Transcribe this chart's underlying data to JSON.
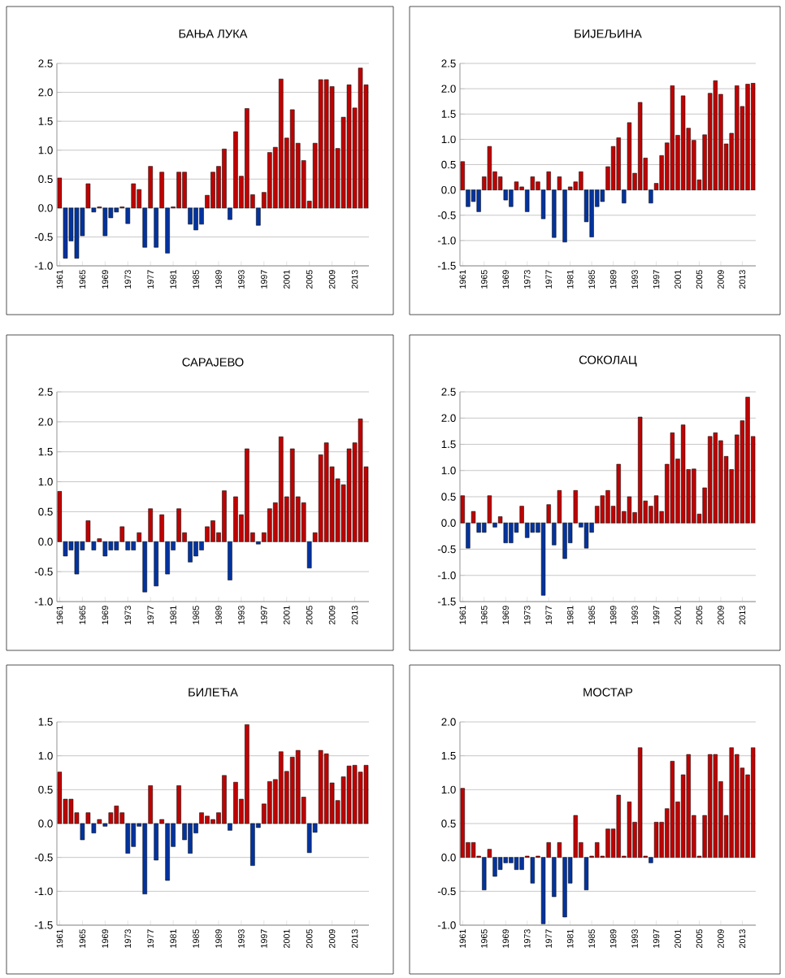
{
  "chart_data": [
    {
      "type": "bar",
      "title": "БАЊА ЛУКА",
      "grid": "y",
      "categories": [
        "1961",
        null,
        null,
        null,
        "1965",
        null,
        null,
        null,
        "1969",
        null,
        null,
        null,
        "1973",
        null,
        null,
        null,
        "1977",
        null,
        null,
        null,
        "1981",
        null,
        null,
        null,
        "1985",
        null,
        null,
        null,
        "1989",
        null,
        null,
        null,
        "1993",
        null,
        null,
        null,
        "1997",
        null,
        null,
        null,
        "2001",
        null,
        null,
        null,
        "2005",
        null,
        null,
        null,
        "2009",
        null,
        null,
        null,
        "2013",
        null,
        null
      ],
      "values": [
        0.52,
        -0.87,
        -0.57,
        -0.87,
        -0.48,
        0.42,
        -0.07,
        0.02,
        -0.48,
        -0.17,
        -0.07,
        0.02,
        -0.27,
        0.42,
        0.32,
        -0.68,
        0.72,
        -0.68,
        0.62,
        -0.78,
        0.02,
        0.62,
        0.62,
        -0.28,
        -0.38,
        -0.28,
        0.22,
        0.62,
        0.72,
        1.02,
        -0.2,
        1.32,
        0.55,
        1.72,
        0.23,
        -0.3,
        0.27,
        0.96,
        1.05,
        2.23,
        1.21,
        1.7,
        1.12,
        0.82,
        0.12,
        1.12,
        2.22,
        2.22,
        2.1,
        1.03,
        1.57,
        2.13,
        1.73,
        2.42,
        2.13
      ],
      "colors": [
        "#c00000",
        "#0033a0",
        "#0033a0",
        "#0033a0",
        "#0033a0",
        "#c00000",
        "#0033a0",
        "#c00000",
        "#0033a0",
        "#0033a0",
        "#0033a0",
        "#c00000",
        "#0033a0",
        "#c00000",
        "#c00000",
        "#0033a0",
        "#c00000",
        "#0033a0",
        "#c00000",
        "#0033a0",
        "#c00000",
        "#c00000",
        "#c00000",
        "#0033a0",
        "#0033a0",
        "#0033a0",
        "#c00000",
        "#c00000",
        "#c00000",
        "#c00000",
        "#0033a0",
        "#c00000",
        "#c00000",
        "#c00000",
        "#c00000",
        "#0033a0",
        "#c00000",
        "#c00000",
        "#c00000",
        "#c00000",
        "#c00000",
        "#c00000",
        "#c00000",
        "#c00000",
        "#c00000",
        "#c00000",
        "#c00000",
        "#c00000",
        "#c00000",
        "#c00000",
        "#c00000",
        "#c00000",
        "#c00000",
        "#c00000",
        "#c00000"
      ],
      "ylim": [
        -1,
        2.5
      ],
      "yticks": [
        {
          "value": -1,
          "label": "-1.0"
        },
        {
          "value": -0.5,
          "label": "-0.5"
        },
        {
          "value": 0,
          "label": "0.0"
        },
        {
          "value": 0.5,
          "label": "0.5"
        },
        {
          "value": 1,
          "label": "1.0"
        },
        {
          "value": 1.5,
          "label": "1.5"
        },
        {
          "value": 2,
          "label": "2.0"
        },
        {
          "value": 2.5,
          "label": "2.5"
        }
      ]
    },
    {
      "type": "bar",
      "title": "БИЈЕЉИНА",
      "grid": "y",
      "categories": [
        "1961",
        null,
        null,
        null,
        "1965",
        null,
        null,
        null,
        "1969",
        null,
        null,
        null,
        "1973",
        null,
        null,
        null,
        "1977",
        null,
        null,
        null,
        "1981",
        null,
        null,
        null,
        "1985",
        null,
        null,
        null,
        "1989",
        null,
        null,
        null,
        "1993",
        null,
        null,
        null,
        "1997",
        null,
        null,
        null,
        "2001",
        null,
        null,
        null,
        "2005",
        null,
        null,
        null,
        "2009",
        null,
        null,
        null,
        "2013",
        null,
        null
      ],
      "values": [
        0.56,
        -0.33,
        -0.23,
        -0.43,
        0.26,
        0.86,
        0.36,
        0.26,
        -0.2,
        -0.33,
        0.16,
        0.06,
        -0.43,
        0.26,
        0.16,
        -0.57,
        0.36,
        -0.94,
        0.26,
        -1.03,
        0.06,
        0.16,
        0.36,
        -0.63,
        -0.93,
        -0.33,
        -0.23,
        0.46,
        0.86,
        1.03,
        -0.26,
        1.33,
        0.33,
        1.73,
        0.63,
        -0.26,
        0.13,
        0.68,
        0.93,
        2.06,
        1.08,
        1.86,
        1.22,
        0.98,
        0.2,
        1.09,
        1.91,
        2.16,
        1.89,
        0.91,
        1.12,
        2.06,
        1.65,
        2.09,
        2.11
      ],
      "colors": [
        "#c00000",
        "#0033a0",
        "#0033a0",
        "#0033a0",
        "#c00000",
        "#c00000",
        "#c00000",
        "#c00000",
        "#0033a0",
        "#0033a0",
        "#c00000",
        "#c00000",
        "#0033a0",
        "#c00000",
        "#c00000",
        "#0033a0",
        "#c00000",
        "#0033a0",
        "#c00000",
        "#0033a0",
        "#c00000",
        "#c00000",
        "#c00000",
        "#0033a0",
        "#0033a0",
        "#0033a0",
        "#0033a0",
        "#c00000",
        "#c00000",
        "#c00000",
        "#0033a0",
        "#c00000",
        "#c00000",
        "#c00000",
        "#c00000",
        "#0033a0",
        "#c00000",
        "#c00000",
        "#c00000",
        "#c00000",
        "#c00000",
        "#c00000",
        "#c00000",
        "#c00000",
        "#c00000",
        "#c00000",
        "#c00000",
        "#c00000",
        "#c00000",
        "#c00000",
        "#c00000",
        "#c00000",
        "#c00000",
        "#c00000",
        "#c00000"
      ],
      "ylim": [
        -1.5,
        2.5
      ],
      "yticks": [
        {
          "value": -1.5,
          "label": "-1.5"
        },
        {
          "value": -1,
          "label": "-1.0"
        },
        {
          "value": -0.5,
          "label": "-0.5"
        },
        {
          "value": 0,
          "label": "0.0"
        },
        {
          "value": 0.5,
          "label": "0.5"
        },
        {
          "value": 1,
          "label": "1.0"
        },
        {
          "value": 1.5,
          "label": "1.5"
        },
        {
          "value": 2,
          "label": "2.0"
        },
        {
          "value": 2.5,
          "label": "2.5"
        }
      ]
    },
    {
      "type": "bar",
      "title": "САРАЈЕВО",
      "grid": "y",
      "categories": [
        "1961",
        null,
        null,
        null,
        "1965",
        null,
        null,
        null,
        "1969",
        null,
        null,
        null,
        "1973",
        null,
        null,
        null,
        "1977",
        null,
        null,
        null,
        "1981",
        null,
        null,
        null,
        "1985",
        null,
        null,
        null,
        "1989",
        null,
        null,
        null,
        "1993",
        null,
        null,
        null,
        "1997",
        null,
        null,
        null,
        "2001",
        null,
        null,
        null,
        "2005",
        null,
        null,
        null,
        "2009",
        null,
        null,
        null,
        "2013",
        null,
        null
      ],
      "values": [
        0.84,
        -0.24,
        -0.14,
        -0.54,
        -0.14,
        0.35,
        -0.14,
        0.05,
        -0.24,
        -0.14,
        -0.14,
        0.25,
        -0.14,
        -0.14,
        0.15,
        -0.84,
        0.55,
        -0.74,
        0.45,
        -0.54,
        -0.14,
        0.55,
        0.15,
        -0.34,
        -0.24,
        -0.14,
        0.25,
        0.35,
        0.15,
        0.85,
        -0.64,
        0.75,
        0.45,
        1.55,
        0.15,
        -0.04,
        0.15,
        0.55,
        0.65,
        1.75,
        0.75,
        1.55,
        0.75,
        0.65,
        -0.44,
        0.15,
        1.45,
        1.65,
        1.25,
        1.05,
        0.95,
        1.55,
        1.65,
        2.05,
        1.25
      ],
      "colors": [
        "#c00000",
        "#0033a0",
        "#0033a0",
        "#0033a0",
        "#0033a0",
        "#c00000",
        "#0033a0",
        "#c00000",
        "#0033a0",
        "#0033a0",
        "#0033a0",
        "#c00000",
        "#0033a0",
        "#0033a0",
        "#c00000",
        "#0033a0",
        "#c00000",
        "#0033a0",
        "#c00000",
        "#0033a0",
        "#0033a0",
        "#c00000",
        "#c00000",
        "#0033a0",
        "#0033a0",
        "#0033a0",
        "#c00000",
        "#c00000",
        "#c00000",
        "#c00000",
        "#0033a0",
        "#c00000",
        "#c00000",
        "#c00000",
        "#c00000",
        "#0033a0",
        "#c00000",
        "#c00000",
        "#c00000",
        "#c00000",
        "#c00000",
        "#c00000",
        "#c00000",
        "#c00000",
        "#0033a0",
        "#c00000",
        "#c00000",
        "#c00000",
        "#c00000",
        "#c00000",
        "#c00000",
        "#c00000",
        "#c00000",
        "#c00000",
        "#c00000"
      ],
      "ylim": [
        -1,
        2.5
      ],
      "yticks": [
        {
          "value": -1,
          "label": "-1.0"
        },
        {
          "value": -0.5,
          "label": "-0.5"
        },
        {
          "value": 0,
          "label": "0.0"
        },
        {
          "value": 0.5,
          "label": "0.5"
        },
        {
          "value": 1,
          "label": "1.0"
        },
        {
          "value": 1.5,
          "label": "1.5"
        },
        {
          "value": 2,
          "label": "2.0"
        },
        {
          "value": 2.5,
          "label": "2.5"
        }
      ]
    },
    {
      "type": "bar",
      "title": "СОКОЛАЦ",
      "grid": "y",
      "categories": [
        "1961",
        null,
        null,
        null,
        "1965",
        null,
        null,
        null,
        "1969",
        null,
        null,
        null,
        "1973",
        null,
        null,
        null,
        "1977",
        null,
        null,
        null,
        "1981",
        null,
        null,
        null,
        "1985",
        null,
        null,
        null,
        "1989",
        null,
        null,
        null,
        "1993",
        null,
        null,
        null,
        "1997",
        null,
        null,
        null,
        "2001",
        null,
        null,
        null,
        "2005",
        null,
        null,
        null,
        "2009",
        null,
        null,
        null,
        "2013",
        null,
        null
      ],
      "values": [
        0.52,
        -0.48,
        0.22,
        -0.18,
        -0.18,
        0.52,
        -0.08,
        0.12,
        -0.38,
        -0.38,
        -0.18,
        0.32,
        -0.28,
        -0.18,
        -0.18,
        -1.38,
        0.35,
        -0.42,
        0.62,
        -0.68,
        -0.38,
        0.62,
        -0.08,
        -0.48,
        -0.18,
        0.32,
        0.52,
        0.62,
        0.32,
        1.12,
        0.22,
        0.5,
        0.2,
        2.02,
        0.42,
        0.32,
        0.52,
        0.22,
        1.12,
        1.72,
        1.22,
        1.87,
        1.02,
        1.03,
        0.17,
        0.67,
        1.65,
        1.72,
        1.57,
        1.27,
        1.02,
        1.68,
        1.95,
        2.4,
        1.65
      ],
      "colors": [
        "#c00000",
        "#0033a0",
        "#c00000",
        "#0033a0",
        "#0033a0",
        "#c00000",
        "#0033a0",
        "#c00000",
        "#0033a0",
        "#0033a0",
        "#0033a0",
        "#c00000",
        "#0033a0",
        "#0033a0",
        "#0033a0",
        "#0033a0",
        "#c00000",
        "#0033a0",
        "#c00000",
        "#0033a0",
        "#0033a0",
        "#c00000",
        "#0033a0",
        "#0033a0",
        "#0033a0",
        "#c00000",
        "#c00000",
        "#c00000",
        "#c00000",
        "#c00000",
        "#c00000",
        "#c00000",
        "#c00000",
        "#c00000",
        "#c00000",
        "#c00000",
        "#c00000",
        "#c00000",
        "#c00000",
        "#c00000",
        "#c00000",
        "#c00000",
        "#c00000",
        "#c00000",
        "#c00000",
        "#c00000",
        "#c00000",
        "#c00000",
        "#c00000",
        "#c00000",
        "#c00000",
        "#c00000",
        "#c00000",
        "#c00000",
        "#c00000"
      ],
      "ylim": [
        -1.5,
        2.5
      ],
      "yticks": [
        {
          "value": -1.5,
          "label": "-1.5"
        },
        {
          "value": -1,
          "label": "-1.0"
        },
        {
          "value": -0.5,
          "label": "-0.5"
        },
        {
          "value": 0,
          "label": "0.0"
        },
        {
          "value": 0.5,
          "label": "0.5"
        },
        {
          "value": 1,
          "label": "1.0"
        },
        {
          "value": 1.5,
          "label": "1.5"
        },
        {
          "value": 2,
          "label": "2.0"
        },
        {
          "value": 2.5,
          "label": "2.5"
        }
      ]
    },
    {
      "type": "bar",
      "title": "БИЛЕЋА",
      "grid": "y",
      "categories": [
        "1961",
        null,
        null,
        null,
        "1965",
        null,
        null,
        null,
        "1969",
        null,
        null,
        null,
        "1973",
        null,
        null,
        null,
        "1977",
        null,
        null,
        null,
        "1981",
        null,
        null,
        null,
        "1985",
        null,
        null,
        null,
        "1989",
        null,
        null,
        null,
        "1993",
        null,
        null,
        null,
        "1997",
        null,
        null,
        null,
        "2001",
        null,
        null,
        null,
        "2005",
        null,
        null,
        null,
        "2009",
        null,
        null,
        null,
        "2013",
        null,
        null
      ],
      "values": [
        0.76,
        0.36,
        0.36,
        0.16,
        -0.24,
        0.16,
        -0.14,
        0.06,
        -0.04,
        0.16,
        0.26,
        0.16,
        -0.44,
        -0.34,
        -0.04,
        -1.04,
        0.56,
        -0.54,
        0.06,
        -0.84,
        -0.34,
        0.56,
        -0.24,
        -0.44,
        -0.14,
        0.16,
        0.11,
        0.06,
        0.16,
        0.71,
        -0.1,
        0.61,
        0.36,
        1.46,
        -0.62,
        -0.06,
        0.29,
        0.62,
        0.65,
        1.06,
        0.77,
        0.98,
        1.08,
        0.39,
        -0.43,
        -0.13,
        1.08,
        1.03,
        0.6,
        0.34,
        0.69,
        0.85,
        0.86,
        0.76,
        0.86
      ],
      "colors": [
        "#c00000",
        "#c00000",
        "#c00000",
        "#c00000",
        "#0033a0",
        "#c00000",
        "#0033a0",
        "#c00000",
        "#0033a0",
        "#c00000",
        "#c00000",
        "#c00000",
        "#0033a0",
        "#0033a0",
        "#0033a0",
        "#0033a0",
        "#c00000",
        "#0033a0",
        "#c00000",
        "#0033a0",
        "#0033a0",
        "#c00000",
        "#0033a0",
        "#0033a0",
        "#0033a0",
        "#c00000",
        "#c00000",
        "#c00000",
        "#c00000",
        "#c00000",
        "#0033a0",
        "#c00000",
        "#c00000",
        "#c00000",
        "#0033a0",
        "#0033a0",
        "#c00000",
        "#c00000",
        "#c00000",
        "#c00000",
        "#c00000",
        "#c00000",
        "#c00000",
        "#c00000",
        "#0033a0",
        "#0033a0",
        "#c00000",
        "#c00000",
        "#c00000",
        "#c00000",
        "#c00000",
        "#c00000",
        "#c00000",
        "#c00000",
        "#c00000"
      ],
      "ylim": [
        -1.5,
        1.5
      ],
      "yticks": [
        {
          "value": -1.5,
          "label": "-1.5"
        },
        {
          "value": -1,
          "label": "-1.0"
        },
        {
          "value": -0.5,
          "label": "-0.5"
        },
        {
          "value": 0,
          "label": "0.0"
        },
        {
          "value": 0.5,
          "label": "0.5"
        },
        {
          "value": 1,
          "label": "1.0"
        },
        {
          "value": 1.5,
          "label": "1.5"
        }
      ]
    },
    {
      "type": "bar",
      "title": "МОСТАР",
      "grid": "y",
      "categories": [
        "1961",
        null,
        null,
        null,
        "1965",
        null,
        null,
        null,
        "1969",
        null,
        null,
        null,
        "1973",
        null,
        null,
        null,
        "1977",
        null,
        null,
        null,
        "1981",
        null,
        null,
        null,
        "1985",
        null,
        null,
        null,
        "1989",
        null,
        null,
        null,
        "1993",
        null,
        null,
        null,
        "1997",
        null,
        null,
        null,
        "2001",
        null,
        null,
        null,
        "2005",
        null,
        null,
        null,
        "2009",
        null,
        null,
        null,
        "2013",
        null,
        null
      ],
      "values": [
        1.02,
        0.22,
        0.22,
        0.02,
        -0.48,
        0.12,
        -0.28,
        -0.18,
        -0.08,
        -0.08,
        -0.18,
        -0.18,
        0.02,
        -0.38,
        0.02,
        -0.98,
        0.22,
        -0.58,
        0.22,
        -0.88,
        -0.38,
        0.62,
        0.22,
        -0.48,
        0.02,
        0.22,
        0.02,
        0.42,
        0.42,
        0.92,
        0.02,
        0.82,
        0.52,
        1.62,
        0.02,
        -0.08,
        0.52,
        0.52,
        0.72,
        1.42,
        0.82,
        1.22,
        1.52,
        0.62,
        0.02,
        0.62,
        1.52,
        1.52,
        1.12,
        0.62,
        1.62,
        1.52,
        1.32,
        1.22,
        1.62
      ],
      "colors": [
        "#c00000",
        "#c00000",
        "#c00000",
        "#c00000",
        "#0033a0",
        "#c00000",
        "#0033a0",
        "#0033a0",
        "#0033a0",
        "#0033a0",
        "#0033a0",
        "#0033a0",
        "#c00000",
        "#0033a0",
        "#c00000",
        "#0033a0",
        "#c00000",
        "#0033a0",
        "#c00000",
        "#0033a0",
        "#0033a0",
        "#c00000",
        "#c00000",
        "#0033a0",
        "#c00000",
        "#c00000",
        "#c00000",
        "#c00000",
        "#c00000",
        "#c00000",
        "#c00000",
        "#c00000",
        "#c00000",
        "#c00000",
        "#c00000",
        "#0033a0",
        "#c00000",
        "#c00000",
        "#c00000",
        "#c00000",
        "#c00000",
        "#c00000",
        "#c00000",
        "#c00000",
        "#c00000",
        "#c00000",
        "#c00000",
        "#c00000",
        "#c00000",
        "#c00000",
        "#c00000",
        "#c00000",
        "#c00000",
        "#c00000",
        "#c00000"
      ],
      "ylim": [
        -1,
        2
      ],
      "yticks": [
        {
          "value": -1,
          "label": "-1.0"
        },
        {
          "value": -0.5,
          "label": "-0.5"
        },
        {
          "value": 0,
          "label": "0.0"
        },
        {
          "value": 0.5,
          "label": "0.5"
        },
        {
          "value": 1,
          "label": "1.0"
        },
        {
          "value": 1.5,
          "label": "1.5"
        },
        {
          "value": 2,
          "label": "2.0"
        }
      ]
    }
  ]
}
